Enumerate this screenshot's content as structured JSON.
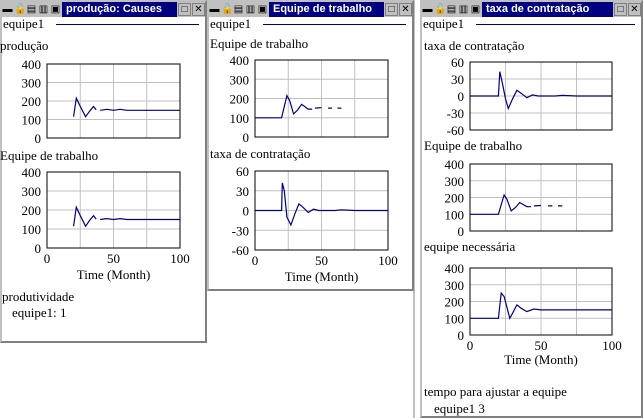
{
  "windows": [
    {
      "title": "produção: Causes",
      "legend": "equipe1",
      "graphs": [
        {
          "label": "produção"
        },
        {
          "label": "Equipe de trabalho"
        }
      ],
      "footer": {
        "label": "produtividade",
        "value": "equipe1: 1"
      }
    },
    {
      "title": "Equipe de trabalho",
      "legend": "equipe1",
      "graphs": [
        {
          "label": "Equipe de trabalho"
        },
        {
          "label": "taxa de contratação"
        }
      ]
    },
    {
      "title": "taxa de contratação",
      "legend": "equipe1",
      "graphs": [
        {
          "label": "taxa de contratação"
        },
        {
          "label": "Equipe de trabalho"
        },
        {
          "label": "equipe necessária"
        }
      ],
      "footer": {
        "label": "tempo para ajustar a equipe",
        "value": "equipe1  3"
      }
    }
  ],
  "xaxis": {
    "label": "Time (Month)",
    "ticks": [
      "0",
      "50",
      "100"
    ],
    "range": [
      0,
      100
    ]
  },
  "series_color": "#000080",
  "chart_data": [
    {
      "type": "line",
      "window": 0,
      "title": "produção",
      "ylim": [
        0,
        400
      ],
      "yticks": [
        "400",
        "300",
        "200",
        "100",
        "0"
      ],
      "xlabel": "Time (Month)",
      "series": [
        {
          "name": "equipe1",
          "points": [
            [
              20,
              115
            ],
            [
              22,
              215
            ],
            [
              25,
              170
            ],
            [
              29,
              115
            ],
            [
              32,
              145
            ],
            [
              35,
              170
            ],
            [
              37,
              152
            ],
            null,
            [
              40,
              150
            ],
            [
              45,
              155
            ],
            [
              50,
              150
            ],
            [
              55,
              155
            ],
            [
              60,
              150
            ],
            [
              100,
              150
            ]
          ]
        }
      ]
    },
    {
      "type": "line",
      "window": 0,
      "title": "Equipe de trabalho",
      "ylim": [
        0,
        400
      ],
      "yticks": [
        "400",
        "300",
        "200",
        "100",
        "0"
      ],
      "xlabel": "Time (Month)",
      "series": [
        {
          "name": "equipe1",
          "points": [
            [
              20,
              115
            ],
            [
              22,
              215
            ],
            [
              25,
              170
            ],
            [
              29,
              115
            ],
            [
              32,
              145
            ],
            [
              35,
              170
            ],
            [
              37,
              152
            ],
            null,
            [
              40,
              150
            ],
            [
              45,
              155
            ],
            [
              50,
              150
            ],
            [
              55,
              155
            ],
            [
              60,
              150
            ],
            [
              100,
              150
            ]
          ]
        }
      ]
    },
    {
      "type": "line",
      "window": 1,
      "title": "Equipe de trabalho",
      "ylim": [
        0,
        400
      ],
      "yticks": [
        "400",
        "300",
        "200",
        "100",
        "0"
      ],
      "xlabel": "Time (Month)",
      "series": [
        {
          "name": "equipe1",
          "points": [
            [
              0,
              100
            ],
            [
              20,
              100
            ],
            [
              24,
              215
            ],
            [
              26,
              190
            ],
            [
              29,
              120
            ],
            [
              32,
              140
            ],
            [
              35,
              170
            ],
            [
              40,
              145
            ],
            [
              43,
              145
            ],
            null,
            [
              45,
              150
            ],
            [
              50,
              152
            ],
            null,
            [
              55,
              150
            ],
            [
              58,
              150
            ],
            null,
            [
              62,
              150
            ],
            [
              65,
              150
            ]
          ]
        }
      ]
    },
    {
      "type": "line",
      "window": 1,
      "title": "taxa de contratação",
      "ylim": [
        -60,
        60
      ],
      "yticks": [
        "60",
        "30",
        "0",
        "-30",
        "-60"
      ],
      "xlabel": "Time (Month)",
      "series": [
        {
          "name": "equipe1",
          "points": [
            [
              0,
              0
            ],
            [
              20,
              0
            ],
            [
              20.5,
              42
            ],
            [
              22,
              30
            ],
            [
              24,
              -10
            ],
            [
              27,
              -22
            ],
            [
              30,
              -5
            ],
            [
              33,
              10
            ],
            [
              36,
              5
            ],
            [
              40,
              -3
            ],
            [
              44,
              2
            ],
            [
              48,
              0
            ],
            [
              60,
              0
            ],
            [
              65,
              1
            ],
            [
              75,
              0
            ],
            [
              100,
              0
            ]
          ]
        }
      ]
    },
    {
      "type": "line",
      "window": 2,
      "title": "taxa de contratação",
      "ylim": [
        -60,
        60
      ],
      "yticks": [
        "60",
        "30",
        "0",
        "-30",
        "-60"
      ],
      "xlabel": "Time (Month)",
      "series": [
        {
          "name": "equipe1",
          "points": [
            [
              0,
              0
            ],
            [
              20,
              0
            ],
            [
              21,
              43
            ],
            [
              23,
              20
            ],
            [
              25,
              -5
            ],
            [
              27,
              -22
            ],
            [
              30,
              -5
            ],
            [
              33,
              10
            ],
            [
              36,
              5
            ],
            [
              40,
              -3
            ],
            [
              44,
              2
            ],
            [
              48,
              0
            ],
            [
              60,
              0
            ],
            [
              65,
              1
            ],
            [
              75,
              0
            ],
            [
              100,
              0
            ]
          ]
        }
      ]
    },
    {
      "type": "line",
      "window": 2,
      "title": "Equipe de trabalho",
      "ylim": [
        0,
        400
      ],
      "yticks": [
        "400",
        "300",
        "200",
        "100",
        "0"
      ],
      "xlabel": "Time (Month)",
      "series": [
        {
          "name": "equipe1",
          "points": [
            [
              0,
              100
            ],
            [
              20,
              100
            ],
            [
              24,
              215
            ],
            [
              26,
              190
            ],
            [
              29,
              120
            ],
            [
              32,
              140
            ],
            [
              35,
              170
            ],
            [
              40,
              145
            ],
            [
              43,
              145
            ],
            null,
            [
              45,
              150
            ],
            [
              50,
              152
            ],
            null,
            [
              55,
              150
            ],
            [
              58,
              150
            ],
            null,
            [
              62,
              150
            ],
            [
              65,
              150
            ]
          ]
        }
      ]
    },
    {
      "type": "line",
      "window": 2,
      "title": "equipe necessária",
      "ylim": [
        0,
        400
      ],
      "yticks": [
        "400",
        "300",
        "200",
        "100",
        "0"
      ],
      "xlabel": "Time (Month)",
      "series": [
        {
          "name": "equipe1",
          "points": [
            [
              0,
              100
            ],
            [
              20,
              100
            ],
            [
              22,
              250
            ],
            [
              24,
              230
            ],
            [
              28,
              100
            ],
            [
              30,
              130
            ],
            [
              33,
              180
            ],
            [
              36,
              160
            ],
            [
              40,
              140
            ],
            [
              45,
              155
            ],
            [
              50,
              150
            ],
            [
              100,
              150
            ]
          ]
        }
      ]
    }
  ]
}
